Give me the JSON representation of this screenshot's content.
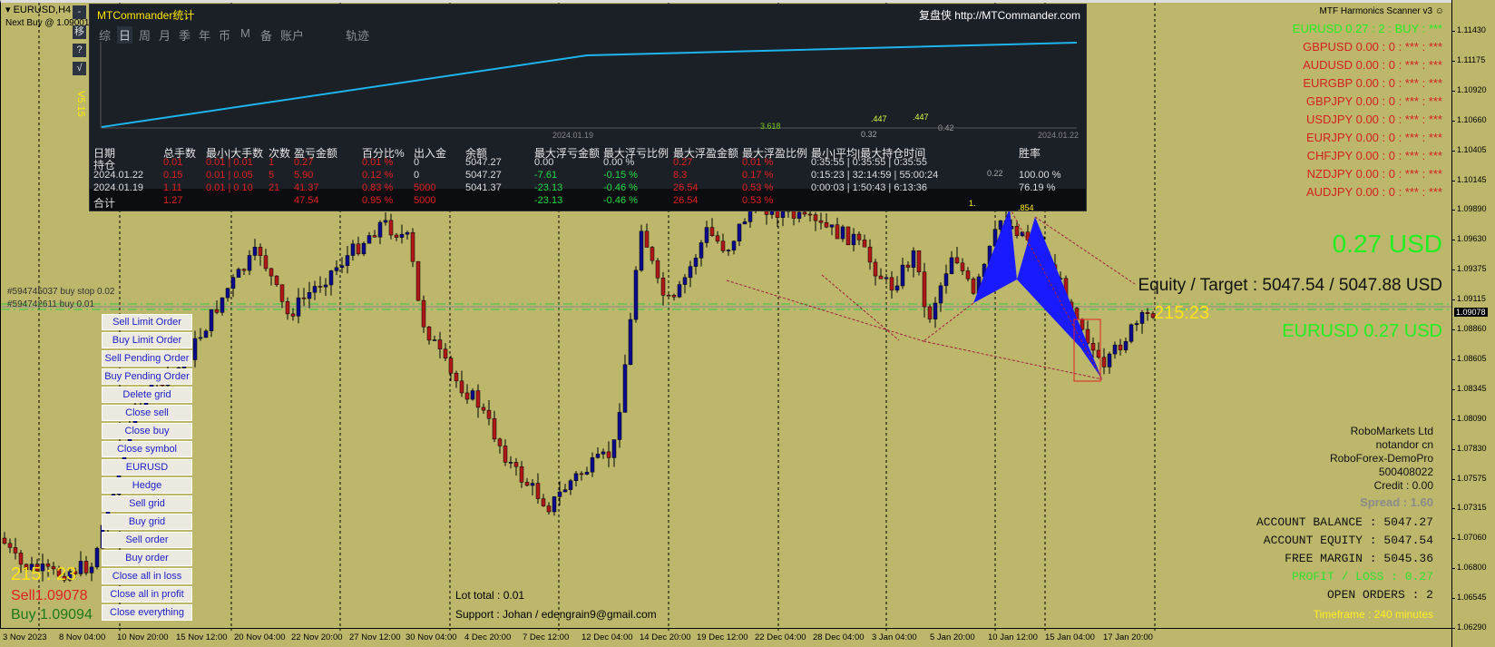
{
  "window": {
    "symbol_tf": "EURUSD,H4",
    "next_buy": "Next Buy @ 1.09001"
  },
  "side_buttons": [
    "-",
    "移",
    "?",
    "√"
  ],
  "mtc": {
    "title": "MTCommander统计",
    "link": "复盘侠 http://MTCommander.com",
    "version": "V5.15",
    "tabs": [
      "综",
      "日",
      "周",
      "月",
      "季",
      "年",
      "币",
      "M",
      "备",
      "账户",
      "轨迹"
    ],
    "active_tab": "日",
    "graph_dates": [
      "2024.01.19",
      "2024.01.22"
    ],
    "headers": [
      "日期",
      "总手数",
      "最小|大手数",
      "次数",
      "盈亏金额",
      "百分比%",
      "出入金",
      "余额",
      "最大浮亏金额",
      "最大浮亏比例",
      "最大浮盈金额",
      "最大浮盈比例",
      "最小|平均|最大持仓时间",
      "胜率"
    ],
    "rows": [
      [
        "持仓",
        "0.01",
        "0.01 | 0.01",
        "1",
        "0.27",
        "0.01 %",
        "0",
        "5047.27",
        "0.00",
        "0.00 %",
        "0.27",
        "0.01 %",
        "0:35:55 | 0:35:55 | 0:35:55",
        ""
      ],
      [
        "2024.01.22",
        "0.15",
        "0.01 | 0.05",
        "5",
        "5.90",
        "0.12 %",
        "0",
        "5047.27",
        "-7.61",
        "-0.15 %",
        "8.3",
        "0.17 %",
        "0:15:23 | 32:14:59 | 55:00:24",
        "100.00 %"
      ],
      [
        "2024.01.19",
        "1.11",
        "0.01 | 0.10",
        "21",
        "41.37",
        "0.83 %",
        "5000",
        "5041.37",
        "-23.13",
        "-0.46 %",
        "26.54",
        "0.53 %",
        "0:00:03 | 1:50:43 | 6:13:36",
        "76.19 %"
      ],
      [
        "合计",
        "1.27",
        "",
        "",
        "47.54",
        "0.95 %",
        "5000",
        "",
        "-23.13",
        "-0.46 %",
        "26.54",
        "0.53 %",
        "",
        ""
      ]
    ]
  },
  "pattern_labels": [
    "3.618",
    ".447",
    ".447",
    "0.42",
    "0.32",
    "0.22",
    "1.",
    ".854"
  ],
  "orders": [
    "#594745037 buy stop 0.02",
    "#594742611 buy 0.01"
  ],
  "buttons": [
    "Sell Limit Order",
    "Buy Limit Order",
    "Sell Pending Order",
    "Buy Pending Order",
    "Delete grid",
    "Close sell",
    "Close buy",
    "Close symbol",
    "EURUSD",
    "Hedge",
    "Sell grid",
    "Buy grid",
    "Sell order",
    "Buy order",
    "Close all in loss",
    "Close all in profit",
    "Close everything"
  ],
  "left_info": {
    "timer": "215 : 23",
    "sell": "Sell1.09078",
    "buy": "Buy 1.09094"
  },
  "right_timer": "215:23",
  "footer": {
    "lot_total": "Lot total : 0.01",
    "support": "Support : Johan / edengrain9@gmail.com"
  },
  "scanner": {
    "title": "MTF Harmonics Scanner v3 ☺",
    "rows": [
      "EURUSD  0.27 : 2 : BUY : ***",
      "GBPUSD  0.00 : 0 : *** : ***",
      "AUDUSD  0.00 : 0 : *** : ***",
      "EURGBP  0.00 : 0 : *** : ***",
      "GBPJPY  0.00 : 0 : *** : ***",
      "USDJPY  0.00 : 0 : *** : ***",
      "EURJPY  0.00 : 0 : *** : ***",
      "CHFJPY  0.00 : 0 : *** : ***",
      "NZDJPY  0.00 : 0 : *** : ***",
      "AUDJPY  0.00 : 0 : *** : ***"
    ]
  },
  "profit_big": "0.27 USD",
  "equity_target": "Equity / Target : 5047.54 / 5047.88 USD",
  "symbol_profit": "EURUSD  0.27 USD",
  "account": {
    "broker": "RoboMarkets Ltd",
    "name": "notandor cn",
    "server": "RoboForex-DemoPro",
    "number": "500408022",
    "credit": "Credit : 0.00",
    "spread": "Spread : 1.60",
    "balance": "ACCOUNT BALANCE : 5047.27",
    "equity": "ACCOUNT EQUITY : 5047.54",
    "free_margin": "FREE MARGIN : 5045.36",
    "pl": "PROFIT / LOSS : 0.27",
    "open_orders": "OPEN ORDERS : 2",
    "timeframe": "Timeframe : 240 minutes"
  },
  "price_axis": [
    "1.11430",
    "1.11175",
    "1.10920",
    "1.10660",
    "1.10405",
    "1.10145",
    "1.09890",
    "1.09630",
    "1.09375",
    "1.09115",
    "1.08860",
    "1.08605",
    "1.08345",
    "1.08090",
    "1.07830",
    "1.07575",
    "1.07315",
    "1.07060",
    "1.06800",
    "1.06545",
    "1.06290"
  ],
  "current_price": "1.09078",
  "time_axis": [
    "3 Nov 2023",
    "8 Nov 04:00",
    "10 Nov 20:00",
    "15 Nov 12:00",
    "20 Nov 04:00",
    "22 Nov 20:00",
    "27 Nov 12:00",
    "30 Nov 04:00",
    "4 Dec 20:00",
    "7 Dec 12:00",
    "12 Dec 04:00",
    "14 Dec 20:00",
    "19 Dec 12:00",
    "22 Dec 04:00",
    "28 Dec 04:00",
    "3 Jan 04:00",
    "5 Jan 20:00",
    "10 Jan 12:00",
    "15 Jan 04:00",
    "17 Jan 20:00"
  ],
  "colors": {
    "chart_bg": "#bdb76b",
    "bull": "#0a0a8c",
    "bear": "#b01818",
    "pattern": "#1a1aff",
    "profit": "#22ee22",
    "loss_text": "#d42020"
  }
}
